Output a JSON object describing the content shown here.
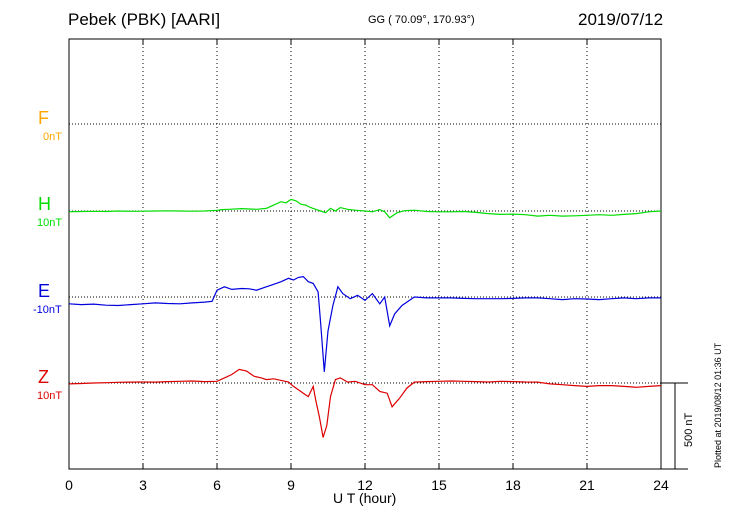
{
  "header": {
    "station": "Pebek (PBK)  [AARI]",
    "coords": "GG ( 70.09°, 170.93°)",
    "date": "2019/07/12"
  },
  "footer": {
    "plotted": "Plotted at 2019/08/12 01:36 UT"
  },
  "chart_data": {
    "type": "line",
    "title": "Pebek (PBK)  [AARI]",
    "xlabel": "U T (hour)",
    "ylabel": "",
    "xlim": [
      0,
      24
    ],
    "x_ticks": [
      0,
      3,
      6,
      9,
      12,
      15,
      18,
      21,
      24
    ],
    "x_tick_labels": [
      "0",
      "3",
      "6",
      "9",
      "12",
      "15",
      "18",
      "21",
      "24"
    ],
    "grid": true,
    "scale_bar": {
      "label": "500 nT",
      "value_nT": 500
    },
    "series": [
      {
        "name": "F",
        "offset_label": "0nT",
        "color": "#ffa500",
        "x": [],
        "values": []
      },
      {
        "name": "H",
        "offset_label": "10nT",
        "color": "#00dd00",
        "x": [
          0,
          0.5,
          1,
          1.5,
          2,
          2.5,
          3,
          3.5,
          4,
          4.5,
          5,
          5.5,
          6,
          6.2,
          6.5,
          7,
          7.3,
          7.6,
          8,
          8.3,
          8.6,
          8.8,
          9,
          9.2,
          9.4,
          9.6,
          9.8,
          10,
          10.2,
          10.4,
          10.6,
          10.8,
          11,
          11.3,
          11.6,
          12,
          12.3,
          12.6,
          12.8,
          13,
          13.3,
          13.6,
          14,
          14.5,
          15,
          15.5,
          16,
          16.5,
          17,
          17.5,
          18,
          18.5,
          19,
          19.5,
          20,
          20.5,
          21,
          21.5,
          22,
          22.5,
          23,
          23.5,
          24
        ],
        "values": [
          -5,
          -3,
          -2,
          -3,
          0,
          -2,
          -1,
          0,
          1,
          0,
          -1,
          0,
          4,
          8,
          10,
          14,
          12,
          10,
          15,
          35,
          55,
          48,
          68,
          60,
          40,
          35,
          20,
          10,
          0,
          -10,
          15,
          0,
          20,
          10,
          5,
          0,
          -5,
          8,
          -5,
          -40,
          -10,
          2,
          5,
          -3,
          -5,
          -5,
          -3,
          -8,
          -15,
          -20,
          -18,
          -22,
          -30,
          -25,
          -30,
          -28,
          -25,
          -22,
          -25,
          -20,
          -15,
          -5,
          0
        ]
      },
      {
        "name": "E",
        "offset_label": "-10nT",
        "color": "#0000dd",
        "x": [
          0,
          0.5,
          1,
          1.5,
          2,
          2.5,
          3,
          3.5,
          4,
          4.5,
          5,
          5.5,
          5.8,
          6,
          6.3,
          6.6,
          7,
          7.3,
          7.6,
          8,
          8.3,
          8.6,
          8.9,
          9.1,
          9.3,
          9.5,
          9.7,
          9.9,
          10.1,
          10.2,
          10.35,
          10.5,
          10.7,
          10.9,
          11.1,
          11.4,
          11.7,
          12,
          12.3,
          12.6,
          12.8,
          13,
          13.2,
          13.5,
          13.8,
          14,
          14.5,
          15,
          15.5,
          16,
          16.5,
          17,
          17.5,
          18,
          18.5,
          19,
          19.5,
          20,
          20.5,
          21,
          21.5,
          22,
          22.5,
          23,
          23.5,
          24
        ],
        "values": [
          -40,
          -45,
          -42,
          -48,
          -50,
          -45,
          -40,
          -35,
          -38,
          -40,
          -35,
          -30,
          -25,
          40,
          60,
          45,
          50,
          48,
          40,
          60,
          75,
          90,
          110,
          100,
          115,
          120,
          90,
          80,
          30,
          -150,
          -440,
          -200,
          -50,
          60,
          20,
          -10,
          10,
          -20,
          20,
          -40,
          0,
          -170,
          -100,
          -50,
          -20,
          0,
          -5,
          -5,
          -5,
          -8,
          -10,
          -10,
          -10,
          -8,
          -5,
          -5,
          -10,
          -15,
          -10,
          -12,
          -15,
          -10,
          -5,
          -10,
          -5,
          -5
        ]
      },
      {
        "name": "Z",
        "offset_label": "10nT",
        "color": "#dd0000",
        "x": [
          0,
          0.5,
          1,
          1.5,
          2,
          2.5,
          3,
          3.5,
          4,
          4.5,
          5,
          5.5,
          6,
          6.3,
          6.6,
          6.9,
          7.2,
          7.5,
          7.8,
          8,
          8.3,
          8.6,
          8.9,
          9.1,
          9.3,
          9.5,
          9.7,
          9.9,
          10,
          10.15,
          10.3,
          10.45,
          10.6,
          10.8,
          11,
          11.3,
          11.6,
          12,
          12.3,
          12.6,
          12.9,
          13.1,
          13.4,
          13.7,
          14,
          14.5,
          15,
          15.5,
          16,
          16.5,
          17,
          17.5,
          18,
          18.5,
          19,
          19.5,
          20,
          20.5,
          21,
          21.5,
          22,
          22.5,
          23,
          23.5,
          24
        ],
        "values": [
          -5,
          -3,
          0,
          2,
          4,
          5,
          6,
          5,
          8,
          10,
          12,
          8,
          10,
          30,
          50,
          80,
          70,
          40,
          30,
          20,
          25,
          15,
          5,
          -20,
          -40,
          -60,
          -80,
          -20,
          -100,
          -200,
          -320,
          -250,
          -80,
          20,
          30,
          5,
          10,
          -10,
          -10,
          -50,
          -60,
          -140,
          -90,
          -30,
          5,
          8,
          10,
          12,
          10,
          8,
          6,
          10,
          8,
          6,
          5,
          -5,
          -10,
          -15,
          -20,
          -15,
          -15,
          -20,
          -25,
          -20,
          -15
        ]
      }
    ]
  }
}
